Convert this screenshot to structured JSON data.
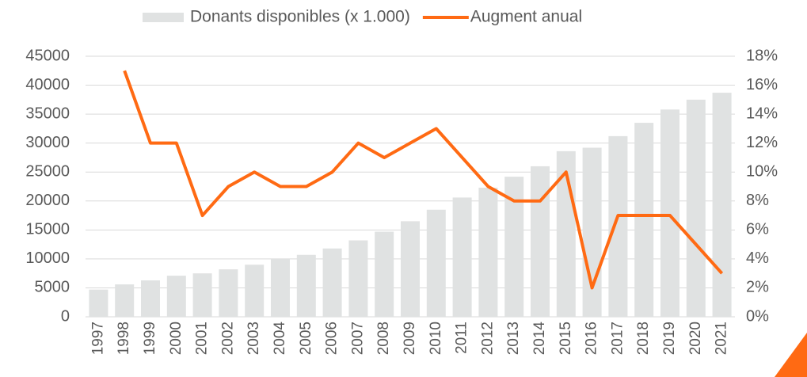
{
  "chart_data": {
    "type": "bar-line",
    "categories": [
      "1997",
      "1998",
      "1999",
      "2000",
      "2001",
      "2002",
      "2003",
      "2004",
      "2005",
      "2006",
      "2007",
      "2008",
      "2009",
      "2010",
      "2011",
      "2012",
      "2013",
      "2014",
      "2015",
      "2016",
      "2017",
      "2018",
      "2019",
      "2020",
      "2021"
    ],
    "series": [
      {
        "name": "Donants disponibles (x 1.000)",
        "type": "bar",
        "color": "#e0e2e2",
        "values": [
          4700,
          5600,
          6300,
          7100,
          7500,
          8200,
          9000,
          10000,
          10700,
          11800,
          13200,
          14700,
          16500,
          18500,
          20600,
          22300,
          24200,
          26000,
          28600,
          29200,
          31200,
          33500,
          35800,
          37500,
          38700
        ]
      },
      {
        "name": "Augment anual",
        "type": "line",
        "axis": "y2",
        "color": "#ff6a13",
        "values": [
          null,
          17,
          12,
          12,
          7,
          9,
          10,
          9,
          9,
          10,
          12,
          11,
          12,
          13,
          11,
          9,
          8,
          8,
          10,
          2,
          7,
          7,
          7,
          5,
          3
        ]
      }
    ],
    "ylim": [
      0,
      45000
    ],
    "yticks": [
      0,
      5000,
      10000,
      15000,
      20000,
      25000,
      30000,
      35000,
      40000,
      45000
    ],
    "y2lim": [
      0,
      18
    ],
    "y2ticks": [
      {
        "value": 0,
        "label": "0%"
      },
      {
        "value": 2,
        "label": "2%"
      },
      {
        "value": 4,
        "label": "4%"
      },
      {
        "value": 6,
        "label": "6%"
      },
      {
        "value": 8,
        "label": "8%"
      },
      {
        "value": 10,
        "label": "10%"
      },
      {
        "value": 12,
        "label": "12%"
      },
      {
        "value": 14,
        "label": "14%"
      },
      {
        "value": 16,
        "label": "16%"
      },
      {
        "value": 18,
        "label": "18%"
      }
    ],
    "grid": true,
    "legend": "top"
  }
}
